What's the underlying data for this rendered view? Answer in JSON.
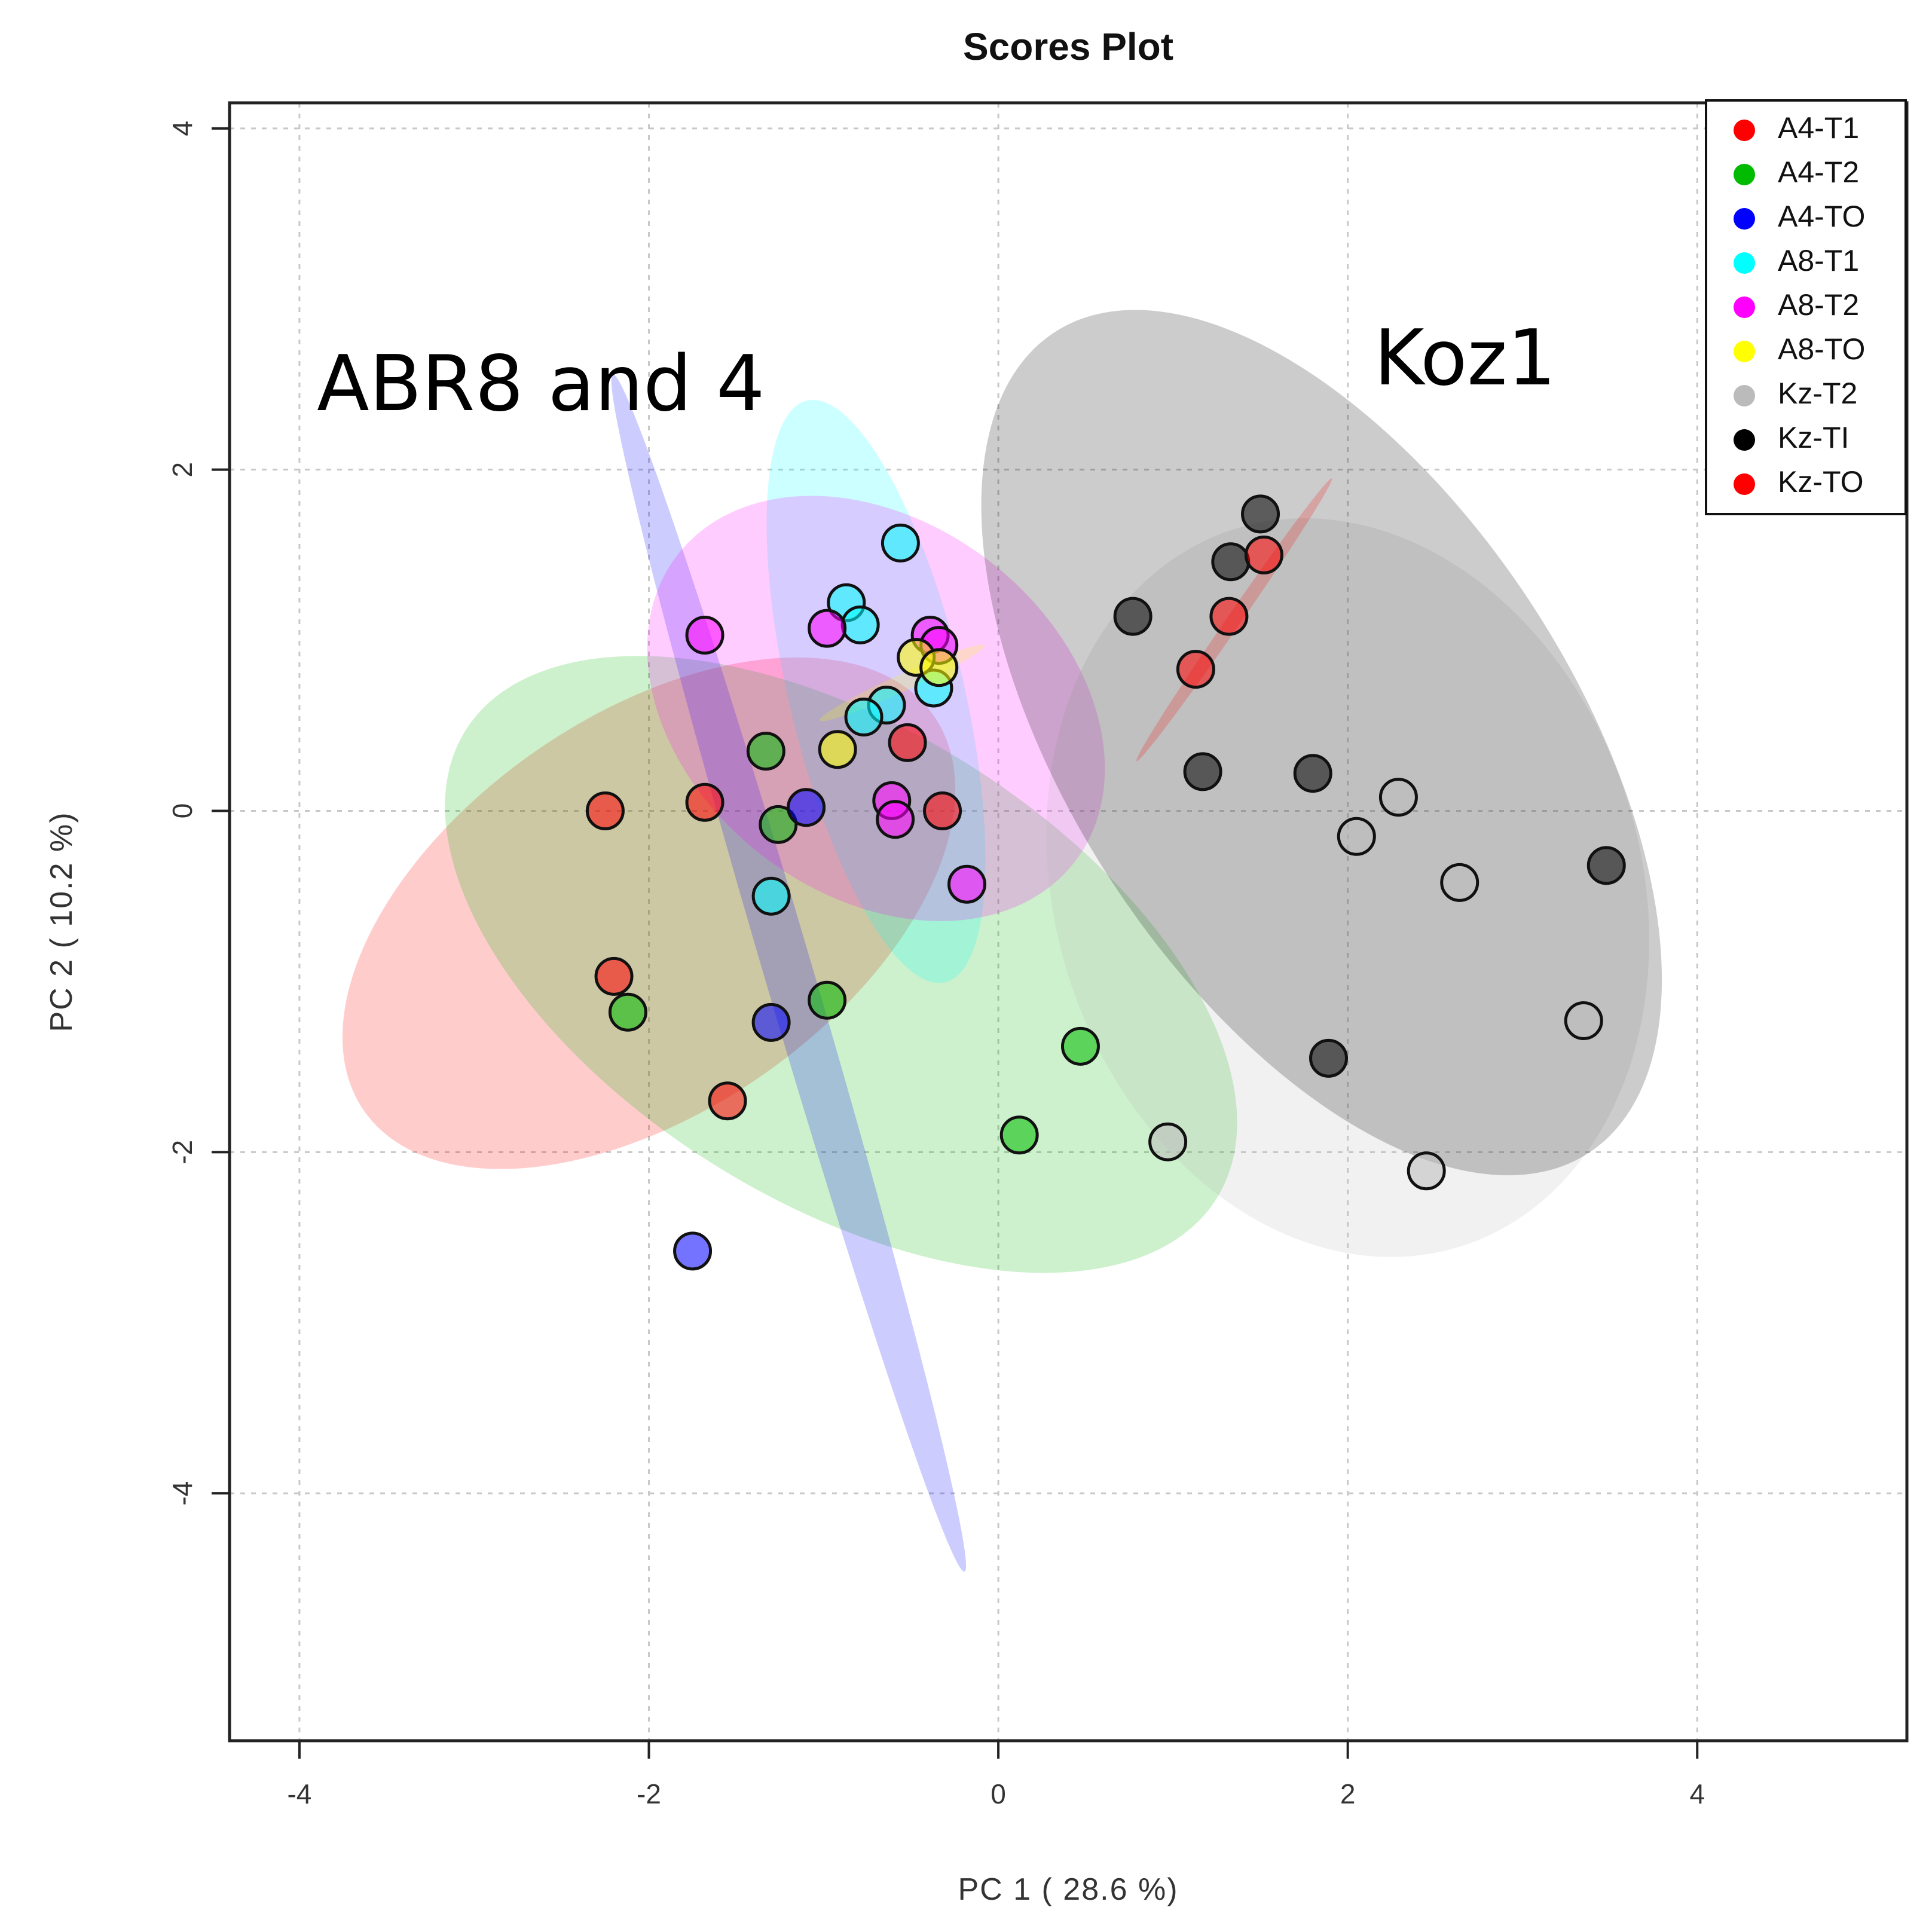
{
  "chart_data": {
    "type": "scatter",
    "title": "Scores Plot",
    "xlabel": "PC 1 ( 28.6 %)",
    "ylabel": "PC 2 ( 10.2 %)",
    "xlim": [
      -4.4,
      5.2
    ],
    "ylim": [
      -5.45,
      4.15
    ],
    "x_ticks": [
      -4,
      -2,
      0,
      2,
      4
    ],
    "y_ticks": [
      -4,
      -2,
      0,
      2,
      4
    ],
    "x_tick_labels": [
      "-4",
      "-2",
      "0",
      "2",
      "4"
    ],
    "y_tick_labels": [
      "-4",
      "-2",
      "0",
      "2",
      "4"
    ],
    "grid": true,
    "legend_position": "top-right",
    "annotations": [
      {
        "text": "ABR8 and 4",
        "x": -3.9,
        "y": 2.35
      },
      {
        "text": "Koz1",
        "x": 2.15,
        "y": 2.5
      }
    ],
    "series": [
      {
        "name": "A4-T1",
        "color": "#ff0000",
        "ellipse": {
          "cx": -2.0,
          "cy": -0.6,
          "rx": 2.0,
          "ry": 1.15,
          "angle": 36
        },
        "points": [
          [
            -2.25,
            0.0
          ],
          [
            -1.68,
            0.05
          ],
          [
            -2.2,
            -0.97
          ],
          [
            -1.55,
            -1.7
          ],
          [
            -0.52,
            0.4
          ],
          [
            -0.32,
            0.0
          ]
        ]
      },
      {
        "name": "A4-T2",
        "color": "#00bb00",
        "ellipse": {
          "cx": -0.9,
          "cy": -0.9,
          "rx": 2.55,
          "ry": 1.38,
          "angle": -33
        },
        "points": [
          [
            -1.33,
            0.35
          ],
          [
            -1.26,
            -0.08
          ],
          [
            -2.12,
            -1.18
          ],
          [
            -0.98,
            -1.11
          ],
          [
            0.47,
            -1.38
          ],
          [
            0.12,
            -1.9
          ]
        ]
      },
      {
        "name": "A4-TO",
        "color": "#0000ff",
        "ellipse": {
          "cx": -1.2,
          "cy": -0.95,
          "rx": 3.65,
          "ry": 0.14,
          "angle": -74
        },
        "points": [
          [
            -1.1,
            0.02
          ],
          [
            -1.3,
            -1.24
          ],
          [
            -1.75,
            -2.58
          ]
        ]
      },
      {
        "name": "A8-T1",
        "color": "#00ffff",
        "ellipse": {
          "cx": -0.7,
          "cy": 0.7,
          "rx": 1.75,
          "ry": 0.5,
          "angle": -77
        },
        "points": [
          [
            -0.56,
            1.57
          ],
          [
            -0.87,
            1.22
          ],
          [
            -0.79,
            1.09
          ],
          [
            -0.64,
            0.62
          ],
          [
            -0.77,
            0.55
          ],
          [
            -0.37,
            0.72
          ],
          [
            -1.3,
            -0.5
          ]
        ]
      },
      {
        "name": "A8-T2",
        "color": "#ff00ff",
        "ellipse": {
          "cx": -0.7,
          "cy": 0.6,
          "rx": 1.45,
          "ry": 1.08,
          "angle": -40
        },
        "points": [
          [
            -1.68,
            1.03
          ],
          [
            -0.98,
            1.07
          ],
          [
            -0.39,
            1.03
          ],
          [
            -0.34,
            0.97
          ],
          [
            -0.61,
            0.06
          ],
          [
            -0.59,
            -0.05
          ],
          [
            -0.18,
            -0.43
          ]
        ]
      },
      {
        "name": "A8-TO",
        "color": "#ffff00",
        "ellipse": {
          "cx": -0.55,
          "cy": 0.75,
          "rx": 0.52,
          "ry": 0.05,
          "angle": 25
        },
        "points": [
          [
            -0.47,
            0.9
          ],
          [
            -0.34,
            0.84
          ],
          [
            -0.92,
            0.36
          ]
        ]
      },
      {
        "name": "Kz-T2",
        "color": "#bbbbbb",
        "ellipse": {
          "cx": 2.0,
          "cy": -0.45,
          "rx": 2.2,
          "ry": 1.68,
          "angle": -74
        },
        "points": [
          [
            2.29,
            0.08
          ],
          [
            2.05,
            -0.15
          ],
          [
            2.64,
            -0.42
          ],
          [
            3.35,
            -1.23
          ],
          [
            0.97,
            -1.94
          ],
          [
            2.45,
            -2.11
          ]
        ]
      },
      {
        "name": "Kz-TI",
        "color": "#000000",
        "ellipse": {
          "cx": 1.85,
          "cy": 0.4,
          "rx": 2.85,
          "ry": 1.45,
          "angle": -58
        },
        "points": [
          [
            1.5,
            1.74
          ],
          [
            1.33,
            1.46
          ],
          [
            0.77,
            1.14
          ],
          [
            1.17,
            0.23
          ],
          [
            1.8,
            0.22
          ],
          [
            3.48,
            -0.32
          ],
          [
            1.89,
            -1.45
          ]
        ]
      },
      {
        "name": "Kz-TO",
        "color": "#ff0000",
        "ellipse": {
          "cx": 1.35,
          "cy": 1.12,
          "rx": 1.0,
          "ry": 0.04,
          "angle": 56
        },
        "points": [
          [
            1.52,
            1.5
          ],
          [
            1.32,
            1.14
          ],
          [
            1.13,
            0.83
          ]
        ]
      }
    ]
  }
}
